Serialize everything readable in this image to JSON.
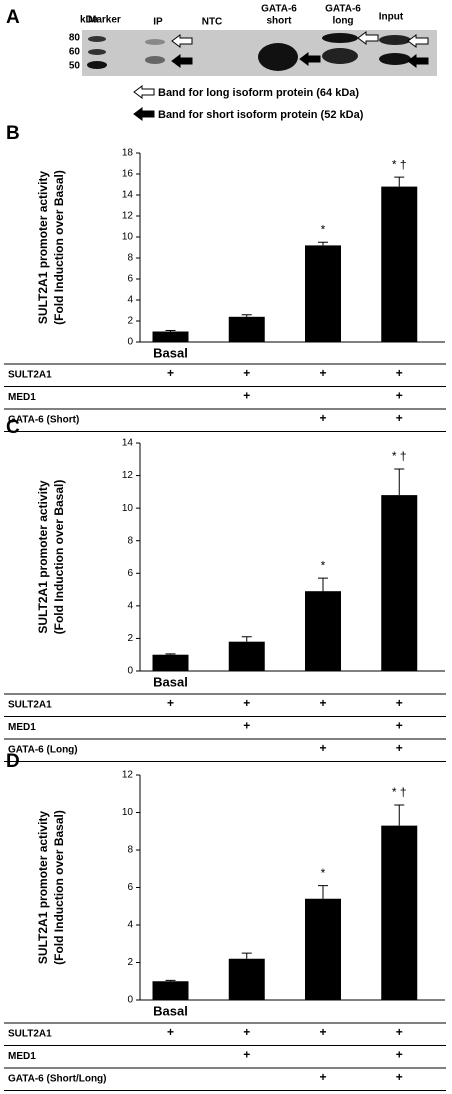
{
  "blot": {
    "panel_label": "A",
    "kda": "kDa",
    "lanes": [
      "Marker",
      "IP",
      "NTC",
      [
        "GATA-6",
        "short"
      ],
      [
        "GATA-6",
        "long"
      ],
      "Input"
    ],
    "markers": [
      80,
      60,
      50
    ],
    "legend": [
      "Band for long isoform protein (64 kDa)",
      "Band for short isoform protein (52 kDa)"
    ]
  },
  "chart_data": [
    {
      "type": "bar",
      "panel_label": "B",
      "y_label": [
        "SULT2A1 promoter activity",
        "(Fold Induction over Basal)"
      ],
      "categories": [
        "Basal",
        null,
        null,
        null
      ],
      "values": [
        1,
        2.4,
        9.2,
        14.8
      ],
      "errors": [
        0.1,
        0.2,
        0.3,
        0.9
      ],
      "annotations": [
        null,
        null,
        "*",
        "* †"
      ],
      "color": "#000000",
      "ylim": [
        0,
        18
      ],
      "yticks": [
        0,
        2,
        4,
        6,
        8,
        10,
        12,
        14,
        16,
        18
      ],
      "grid": false,
      "conditions": [
        {
          "label": "SULT2A1",
          "marks": [
            "+",
            "+",
            "+",
            "+"
          ]
        },
        {
          "label": "MED1",
          "marks": [
            null,
            "+",
            null,
            "+"
          ]
        },
        {
          "label": "GATA-6 (Short)",
          "marks": [
            null,
            null,
            "+",
            "+"
          ]
        }
      ]
    },
    {
      "type": "bar",
      "panel_label": "C",
      "y_label": [
        "SULT2A1 promoter activity",
        "(Fold Induction over Basal)"
      ],
      "categories": [
        "Basal",
        null,
        null,
        null
      ],
      "values": [
        1,
        1.8,
        4.9,
        10.8
      ],
      "errors": [
        0.05,
        0.3,
        0.8,
        1.6
      ],
      "annotations": [
        null,
        null,
        "*",
        "* †"
      ],
      "color": "#000000",
      "ylim": [
        0,
        14
      ],
      "yticks": [
        0,
        2,
        4,
        6,
        8,
        10,
        12,
        14
      ],
      "grid": false,
      "conditions": [
        {
          "label": "SULT2A1",
          "marks": [
            "+",
            "+",
            "+",
            "+"
          ]
        },
        {
          "label": "MED1",
          "marks": [
            null,
            "+",
            null,
            "+"
          ]
        },
        {
          "label": "GATA-6 (Long)",
          "marks": [
            null,
            null,
            "+",
            "+"
          ]
        }
      ]
    },
    {
      "type": "bar",
      "panel_label": "D",
      "y_label": [
        "SULT2A1 promoter activity",
        "(Fold Induction over Basal)"
      ],
      "categories": [
        "Basal",
        null,
        null,
        null
      ],
      "values": [
        1,
        2.2,
        5.4,
        9.3
      ],
      "errors": [
        0.05,
        0.3,
        0.7,
        1.1
      ],
      "annotations": [
        null,
        null,
        "*",
        "* †"
      ],
      "color": "#000000",
      "ylim": [
        0,
        12
      ],
      "yticks": [
        0,
        2,
        4,
        6,
        8,
        10,
        12
      ],
      "grid": false,
      "conditions": [
        {
          "label": "SULT2A1",
          "marks": [
            "+",
            "+",
            "+",
            "+"
          ]
        },
        {
          "label": "MED1",
          "marks": [
            null,
            "+",
            null,
            "+"
          ]
        },
        {
          "label": "GATA-6 (Short/Long)",
          "marks": [
            null,
            null,
            "+",
            "+"
          ]
        }
      ]
    }
  ]
}
